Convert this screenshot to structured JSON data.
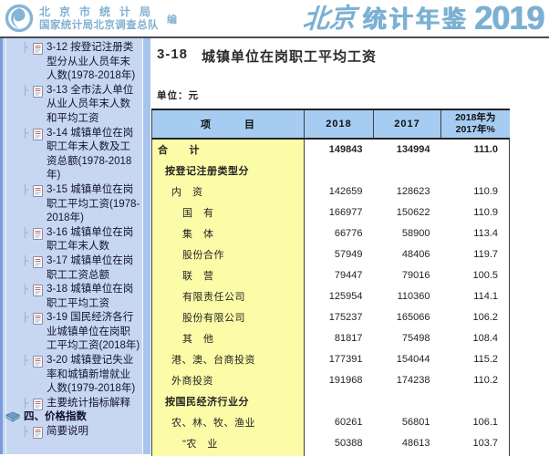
{
  "banner": {
    "agency_line1": "北京市统计局",
    "agency_line2": "国家统计局北京调查总队",
    "editor_label": "编",
    "title_script": "北京",
    "title_main": "统计年鉴",
    "title_year": "2019",
    "accent_color": "#7cb0d3"
  },
  "sidebar": {
    "items": [
      {
        "label": "3-12 按登记注册类型分从业人员年末人数(1978-2018年)",
        "type": "doc"
      },
      {
        "label": "3-13 全市法人单位从业人员年末人数和平均工资",
        "type": "doc"
      },
      {
        "label": "3-14 城镇单位在岗职工年末人数及工资总额(1978-2018年)",
        "type": "doc"
      },
      {
        "label": "3-15 城镇单位在岗职工平均工资(1978-2018年)",
        "type": "doc"
      },
      {
        "label": "3-16 城镇单位在岗职工年末人数",
        "type": "doc"
      },
      {
        "label": "3-17 城镇单位在岗职工工资总额",
        "type": "doc"
      },
      {
        "label": "3-18 城镇单位在岗职工平均工资",
        "type": "doc"
      },
      {
        "label": "3-19 国民经济各行业城镇单位在岗职工平均工资(2018年)",
        "type": "doc"
      },
      {
        "label": "3-20 城镇登记失业率和城镇新增就业人数(1979-2018年)",
        "type": "doc"
      },
      {
        "label": "主要统计指标解释",
        "type": "doc"
      },
      {
        "label": "四、价格指数",
        "type": "book"
      },
      {
        "label": "简要说明",
        "type": "doc"
      }
    ]
  },
  "content": {
    "table_no": "3-18",
    "title": "城镇单位在岗职工平均工资",
    "unit_label": "单位：元"
  },
  "table": {
    "columns": {
      "item": "项　　　目",
      "y2018": "2018",
      "y2017": "2017",
      "ratio_line1": "2018年为",
      "ratio_line2": "2017年%"
    },
    "rows": [
      {
        "label": "合　　计",
        "indent": 0,
        "bold": true,
        "v2018": "149843",
        "v2017": "134994",
        "ratio": "111.0"
      },
      {
        "label": "按登记注册类型分",
        "indent": 1,
        "bold": true,
        "v2018": "",
        "v2017": "",
        "ratio": ""
      },
      {
        "label": "内　资",
        "indent": 2,
        "bold": false,
        "v2018": "142659",
        "v2017": "128623",
        "ratio": "110.9"
      },
      {
        "label": "国　有",
        "indent": 3,
        "bold": false,
        "v2018": "166977",
        "v2017": "150622",
        "ratio": "110.9"
      },
      {
        "label": "集　体",
        "indent": 3,
        "bold": false,
        "v2018": "66776",
        "v2017": "58900",
        "ratio": "113.4"
      },
      {
        "label": "股份合作",
        "indent": 3,
        "bold": false,
        "v2018": "57949",
        "v2017": "48406",
        "ratio": "119.7"
      },
      {
        "label": "联　营",
        "indent": 3,
        "bold": false,
        "v2018": "79447",
        "v2017": "79016",
        "ratio": "100.5"
      },
      {
        "label": "有限责任公司",
        "indent": 3,
        "bold": false,
        "v2018": "125954",
        "v2017": "110360",
        "ratio": "114.1"
      },
      {
        "label": "股份有限公司",
        "indent": 3,
        "bold": false,
        "v2018": "175237",
        "v2017": "165066",
        "ratio": "106.2"
      },
      {
        "label": "其　他",
        "indent": 3,
        "bold": false,
        "v2018": "81817",
        "v2017": "75498",
        "ratio": "108.4"
      },
      {
        "label": "港、澳、台商投资",
        "indent": 2,
        "bold": false,
        "v2018": "177391",
        "v2017": "154044",
        "ratio": "115.2"
      },
      {
        "label": "外商投资",
        "indent": 2,
        "bold": false,
        "v2018": "191968",
        "v2017": "174238",
        "ratio": "110.2"
      },
      {
        "label": "按国民经济行业分",
        "indent": 1,
        "bold": true,
        "v2018": "",
        "v2017": "",
        "ratio": ""
      },
      {
        "label": "农、林、牧、渔业",
        "indent": 2,
        "bold": false,
        "v2018": "60261",
        "v2017": "56801",
        "ratio": "106.1"
      },
      {
        "label": "\"农　业",
        "indent": 3,
        "bold": false,
        "v2018": "50388",
        "v2017": "48613",
        "ratio": "103.7"
      }
    ]
  }
}
